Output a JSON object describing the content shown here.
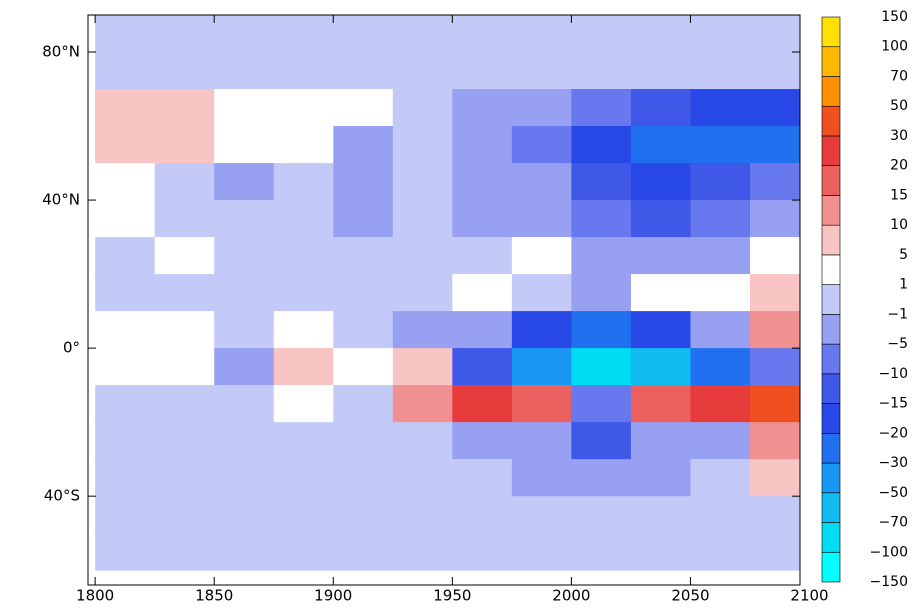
{
  "chart_data": {
    "type": "contour",
    "x": [
      1812.5,
      1837.5,
      1862.5,
      1887.5,
      1912.5,
      1937.5,
      1962.5,
      1987.5,
      2012.5,
      2037.5,
      2062.5,
      2087.5
    ],
    "y": [
      85,
      75,
      65,
      55,
      45,
      35,
      25,
      15,
      5,
      -5,
      -15,
      -25,
      -35,
      -45,
      -55
    ],
    "z": [
      [
        0,
        0,
        0,
        0,
        0,
        0,
        0,
        0,
        0,
        0,
        0,
        0
      ],
      [
        0,
        0,
        0,
        0,
        0,
        0,
        0,
        0,
        0,
        0,
        0,
        0
      ],
      [
        5,
        8,
        3,
        3,
        2,
        0,
        -2,
        -3,
        -8,
        -15,
        -20,
        -20
      ],
      [
        6,
        7,
        2,
        1,
        -2,
        -1,
        -3,
        -6,
        -20,
        -30,
        -30,
        -25
      ],
      [
        2,
        0,
        -2,
        -1,
        -2,
        0,
        -2,
        -5,
        -15,
        -20,
        -15,
        -10
      ],
      [
        1,
        0,
        -1,
        0,
        -2,
        0,
        -3,
        -2,
        -10,
        -15,
        -10,
        -5
      ],
      [
        0,
        2,
        -1,
        0,
        -1,
        0,
        -1,
        2,
        -5,
        -5,
        -3,
        3
      ],
      [
        -1,
        0,
        0,
        -1,
        0,
        -1,
        2,
        0,
        -3,
        3,
        3,
        8
      ],
      [
        3,
        2,
        -1,
        2,
        0,
        -2,
        -5,
        -20,
        -30,
        -20,
        -5,
        12
      ],
      [
        4,
        3,
        -5,
        6,
        2,
        5,
        -15,
        -50,
        -100,
        -70,
        -30,
        -10
      ],
      [
        0,
        0,
        -1,
        2,
        -1,
        10,
        20,
        15,
        -10,
        15,
        20,
        30
      ],
      [
        0,
        -1,
        0,
        -1,
        0,
        -1,
        -3,
        -5,
        -15,
        -5,
        -2,
        10
      ],
      [
        -1,
        0,
        -1,
        0,
        -1,
        -1,
        0,
        -3,
        -5,
        -2,
        -1,
        8
      ],
      [
        0,
        0,
        0,
        0,
        0,
        0,
        0,
        -1,
        -1,
        -1,
        -1,
        -1
      ],
      [
        0,
        0,
        0,
        0,
        0,
        0,
        0,
        0,
        0,
        0,
        0,
        0
      ]
    ],
    "xlim": [
      1797,
      2096
    ],
    "ylim": [
      -64,
      90
    ],
    "xticks": [
      1800,
      1850,
      1900,
      1950,
      2000,
      2050,
      2100
    ],
    "yticks": [
      {
        "value": 80,
        "label": "80°N"
      },
      {
        "value": 40,
        "label": "40°N"
      },
      {
        "value": 0,
        "label": "0°"
      },
      {
        "value": -40,
        "label": "40°S"
      }
    ],
    "levels": [
      {
        "value": -150,
        "label": "−150"
      },
      {
        "value": -100,
        "label": "−100"
      },
      {
        "value": -70,
        "label": "−70"
      },
      {
        "value": -50,
        "label": "−50"
      },
      {
        "value": -30,
        "label": "−30"
      },
      {
        "value": -20,
        "label": "−20"
      },
      {
        "value": -15,
        "label": "−15"
      },
      {
        "value": -10,
        "label": "−10"
      },
      {
        "value": -5,
        "label": "−5"
      },
      {
        "value": -1,
        "label": "−1"
      },
      1,
      5,
      10,
      15,
      20,
      30,
      50,
      70,
      100,
      150
    ],
    "colors": [
      "#00ffff",
      "#00dcf2",
      "#10bcf2",
      "#1898f2",
      "#2070f0",
      "#2848e8",
      "#4058e8",
      "#6878ee",
      "#98a0f2",
      "#c4caf8",
      "#ffffff",
      "#f8c4c4",
      "#f09090",
      "#ec6060",
      "#e83c3c",
      "#f05020",
      "#ff9000",
      "#ffb800",
      "#ffe000"
    ]
  }
}
